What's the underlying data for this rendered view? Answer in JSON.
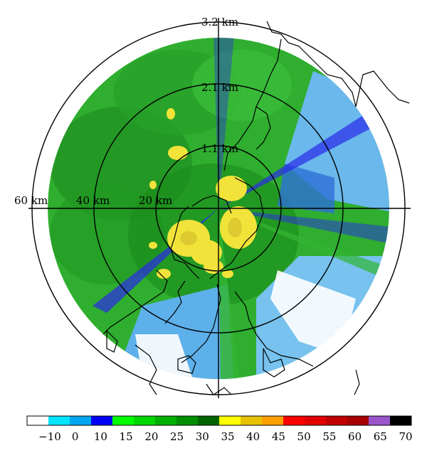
{
  "range_labels": {
    "horizontal": [
      "60 km",
      "40 km",
      "20 km"
    ],
    "vertical": [
      "3.2 km",
      "2.1 km",
      "1.1 km"
    ]
  },
  "colorbar": {
    "ticks": [
      "−10",
      "0",
      "10",
      "15",
      "20",
      "25",
      "30",
      "35",
      "40",
      "45",
      "50",
      "55",
      "60",
      "65",
      "70"
    ],
    "colors": [
      "#ffffff",
      "#00e5ff",
      "#00a6f0",
      "#0000f6",
      "#00ff00",
      "#00d600",
      "#00b000",
      "#008f00",
      "#006400",
      "#ffff00",
      "#e6c200",
      "#ffa000",
      "#ff0000",
      "#e00000",
      "#c00000",
      "#a80000",
      "#9955c9",
      "#000000"
    ]
  },
  "palette": {
    "ring": "#000000",
    "coast": "#000000",
    "background": "#ffffff"
  }
}
